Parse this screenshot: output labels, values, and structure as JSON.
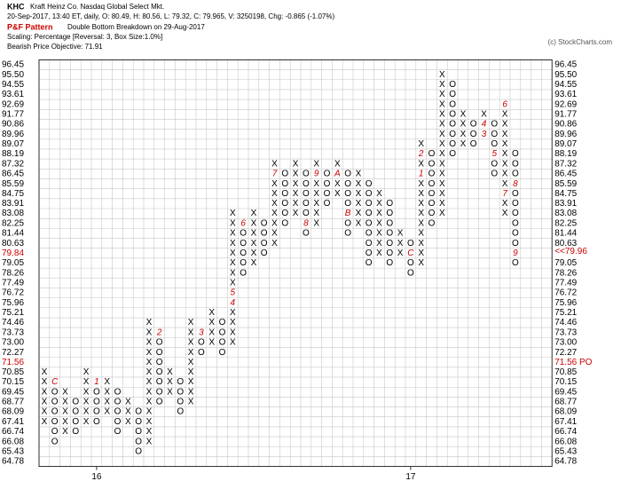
{
  "header": {
    "symbol": "KHC",
    "name": "Kraft Heinz Co.  Nasdaq Global Select Mkt.",
    "quote": "20-Sep-2017, 13:40 ET, daily, O: 80.49, H: 80.56, L: 79.32, C: 79.965, V: 3250198, Chg: -0.865 (-1.07%)",
    "pattern_label": "P&F Pattern",
    "pattern": "Double Bottom Breakdown on 29-Aug-2017",
    "scaling": "Scaling: Percentage [Reversal: 3, Box Size:1.0%]",
    "objective": "Bearish Price Objective: 71.91",
    "credit": "(c) StockCharts.com"
  },
  "chart_data": {
    "type": "point_and_figure",
    "log": true,
    "grid": true,
    "box_color": "#000000",
    "marker_color": "#cc0000",
    "ylim": [
      64.78,
      96.45
    ],
    "yticks": [
      96.45,
      {
        "value": 95.5,
        "label": "95.50"
      },
      94.55,
      93.61,
      92.69,
      91.77,
      90.86,
      89.96,
      89.07,
      88.19,
      87.32,
      86.45,
      85.59,
      84.75,
      83.91,
      83.08,
      82.25,
      81.44,
      80.63,
      {
        "value": 79.84,
        "label": "79.84",
        "color": "#cc0000"
      },
      79.05,
      78.26,
      77.49,
      76.72,
      75.96,
      75.21,
      74.46,
      73.73,
      {
        "value": 73,
        "label": "73.00"
      },
      72.27,
      {
        "value": 71.56,
        "label": "71.56",
        "color": "#cc0000"
      },
      70.85,
      70.15,
      69.45,
      68.77,
      68.09,
      67.41,
      66.74,
      66.08,
      65.43,
      64.78
    ],
    "y2ticks": [
      96.45,
      {
        "value": 95.5,
        "label": "95.50"
      },
      94.55,
      93.61,
      92.69,
      91.77,
      90.86,
      89.96,
      89.07,
      88.19,
      87.32,
      86.45,
      85.59,
      84.75,
      83.91,
      83.08,
      82.25,
      81.44,
      80.63,
      {
        "value": 79.96,
        "label": "<<79.96",
        "color": "#cc0000"
      },
      79.05,
      78.26,
      77.49,
      76.72,
      75.96,
      75.21,
      74.46,
      73.73,
      {
        "value": 73,
        "label": "73.00"
      },
      72.27,
      {
        "value": 71.56,
        "label": "71.56 PO",
        "color": "#cc0000"
      },
      70.85,
      70.15,
      69.45,
      68.77,
      68.09,
      67.41,
      66.74,
      66.08,
      65.43,
      64.78
    ],
    "columns": [
      {
        "box": "X",
        "high": 70.85,
        "low": 67.41,
        "marks": []
      },
      {
        "box": "O",
        "high": 70.15,
        "low": 66.08,
        "marks": [
          {
            "label": "C",
            "price": 70.15
          }
        ]
      },
      {
        "box": "X",
        "high": 69.45,
        "low": 66.74,
        "marks": []
      },
      {
        "box": "O",
        "high": 68.77,
        "low": 66.74,
        "marks": []
      },
      {
        "box": "X",
        "high": 70.85,
        "low": 67.41,
        "marks": []
      },
      {
        "box": "O",
        "high": 70.15,
        "low": 67.41,
        "marks": [
          {
            "label": "1",
            "price": 70.15
          }
        ],
        "year_label": "16"
      },
      {
        "box": "X",
        "high": 70.15,
        "low": 68.09,
        "marks": []
      },
      {
        "box": "O",
        "high": 69.45,
        "low": 66.74,
        "marks": []
      },
      {
        "box": "X",
        "high": 68.77,
        "low": 67.41,
        "marks": []
      },
      {
        "box": "O",
        "high": 68.09,
        "low": 65.43,
        "marks": []
      },
      {
        "box": "X",
        "high": 74.46,
        "low": 66.08,
        "marks": []
      },
      {
        "box": "O",
        "high": 73.73,
        "low": 68.77,
        "marks": [
          {
            "label": "2",
            "price": 73.73
          }
        ]
      },
      {
        "box": "X",
        "high": 70.85,
        "low": 69.45,
        "marks": []
      },
      {
        "box": "O",
        "high": 70.15,
        "low": 68.09,
        "marks": []
      },
      {
        "box": "X",
        "high": 74.46,
        "low": 68.77,
        "marks": []
      },
      {
        "box": "O",
        "high": 73.73,
        "low": 72.27,
        "marks": [
          {
            "label": "3",
            "price": 73.73
          }
        ]
      },
      {
        "box": "X",
        "high": 75.21,
        "low": 73,
        "marks": []
      },
      {
        "box": "O",
        "high": 74.46,
        "low": 72.27,
        "marks": []
      },
      {
        "box": "X",
        "high": 83.08,
        "low": 73,
        "marks": [
          {
            "label": "4",
            "price": 75.96
          },
          {
            "label": "5",
            "price": 76.72
          }
        ]
      },
      {
        "box": "O",
        "high": 82.25,
        "low": 78.26,
        "marks": [
          {
            "label": "6",
            "price": 82.25
          }
        ]
      },
      {
        "box": "X",
        "high": 83.08,
        "low": 79.05,
        "marks": []
      },
      {
        "box": "O",
        "high": 82.25,
        "low": 79.84,
        "marks": []
      },
      {
        "box": "X",
        "high": 87.32,
        "low": 80.63,
        "marks": [
          {
            "label": "7",
            "price": 86.45
          }
        ]
      },
      {
        "box": "O",
        "high": 86.45,
        "low": 82.25,
        "marks": []
      },
      {
        "box": "X",
        "high": 87.32,
        "low": 83.08,
        "marks": []
      },
      {
        "box": "O",
        "high": 86.45,
        "low": 81.44,
        "marks": [
          {
            "label": "8",
            "price": 82.25
          }
        ]
      },
      {
        "box": "X",
        "high": 87.32,
        "low": 82.25,
        "marks": [
          {
            "label": "9",
            "price": 86.45
          }
        ]
      },
      {
        "box": "O",
        "high": 86.45,
        "low": 83.91,
        "marks": []
      },
      {
        "box": "X",
        "high": 87.32,
        "low": 84.75,
        "marks": [
          {
            "label": "A",
            "price": 86.45
          }
        ]
      },
      {
        "box": "O",
        "high": 86.45,
        "low": 81.44,
        "marks": [
          {
            "label": "B",
            "price": 83.08
          }
        ]
      },
      {
        "box": "X",
        "high": 86.45,
        "low": 82.25,
        "marks": []
      },
      {
        "box": "O",
        "high": 85.59,
        "low": 79.05,
        "marks": []
      },
      {
        "box": "X",
        "high": 84.75,
        "low": 79.84,
        "marks": []
      },
      {
        "box": "O",
        "high": 83.91,
        "low": 79.05,
        "marks": []
      },
      {
        "box": "X",
        "high": 81.44,
        "low": 79.84,
        "marks": []
      },
      {
        "box": "O",
        "high": 80.63,
        "low": 78.26,
        "marks": [
          {
            "label": "C",
            "price": 79.84
          }
        ],
        "year_label": "17"
      },
      {
        "box": "X",
        "high": 89.07,
        "low": 79.05,
        "marks": [
          {
            "label": "1",
            "price": 86.45
          },
          {
            "label": "2",
            "price": 88.19
          }
        ]
      },
      {
        "box": "O",
        "high": 88.19,
        "low": 82.25,
        "marks": []
      },
      {
        "box": "X",
        "high": 95.5,
        "low": 83.08,
        "marks": []
      },
      {
        "box": "O",
        "high": 94.55,
        "low": 88.19,
        "marks": []
      },
      {
        "box": "X",
        "high": 91.77,
        "low": 89.07,
        "marks": []
      },
      {
        "box": "O",
        "high": 90.86,
        "low": 89.07,
        "marks": []
      },
      {
        "box": "X",
        "high": 91.77,
        "low": 89.96,
        "marks": [
          {
            "label": "3",
            "price": 89.96
          },
          {
            "label": "4",
            "price": 90.86
          }
        ]
      },
      {
        "box": "O",
        "high": 90.86,
        "low": 86.45,
        "marks": [
          {
            "label": "5",
            "price": 88.19
          }
        ]
      },
      {
        "box": "X",
        "high": 92.69,
        "low": 83.08,
        "marks": [
          {
            "label": "6",
            "price": 92.69
          },
          {
            "label": "7",
            "price": 84.75
          }
        ]
      },
      {
        "box": "O",
        "high": 88.19,
        "low": 79.05,
        "marks": [
          {
            "label": "8",
            "price": 85.59
          },
          {
            "label": "9",
            "price": 79.84
          }
        ]
      }
    ]
  }
}
